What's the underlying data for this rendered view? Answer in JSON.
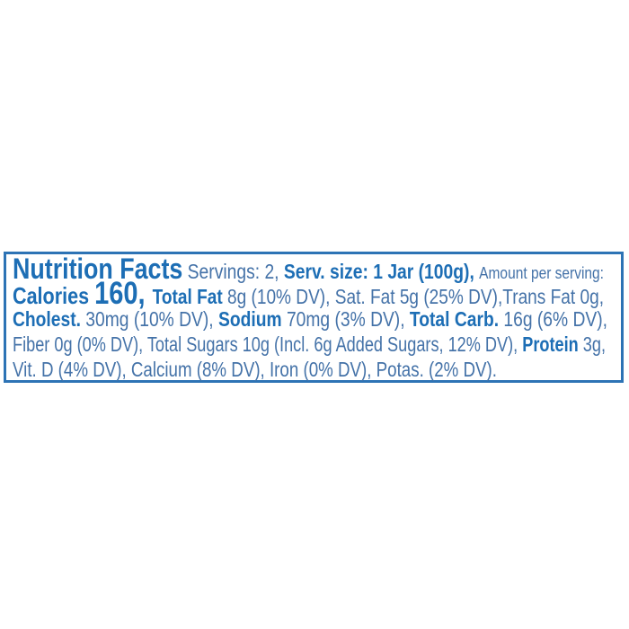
{
  "label": {
    "colors": {
      "bold_text": "#1d6eb5",
      "regular_text": "#4472a8",
      "border": "#2d73b5"
    },
    "title": "Nutrition Facts",
    "servings": "2",
    "serving_size": "1 Jar (100g)",
    "calories": "160",
    "lines": [
      {
        "segments": [
          {
            "text": "Nutrition Facts",
            "style": "title",
            "name": "nutrition-facts-title"
          },
          {
            "text": " Servings: 2, ",
            "style": "regular",
            "name": "servings-value"
          },
          {
            "text": "Serv. size: 1 Jar (100g), ",
            "style": "bold",
            "name": "serving-size-value"
          },
          {
            "text": "Amount per serving:",
            "style": "small",
            "name": "amount-per-serving-label"
          }
        ]
      },
      {
        "segments": [
          {
            "text": "Calories ",
            "style": "calword",
            "name": "calories-label"
          },
          {
            "text": "160, ",
            "style": "calnum",
            "name": "calories-value"
          },
          {
            "text": "Total Fat ",
            "style": "bold",
            "name": "total-fat-label"
          },
          {
            "text": "8g (10% DV), Sat. Fat 5g (25% DV),Trans Fat 0g,",
            "style": "regular",
            "name": "fat-values"
          }
        ]
      },
      {
        "segments": [
          {
            "text": "Cholest. ",
            "style": "bold",
            "name": "cholesterol-label"
          },
          {
            "text": "30mg (10% DV), ",
            "style": "regular",
            "name": "cholesterol-value"
          },
          {
            "text": "Sodium ",
            "style": "bold",
            "name": "sodium-label"
          },
          {
            "text": "70mg (3% DV), ",
            "style": "regular",
            "name": "sodium-value"
          },
          {
            "text": "Total Carb. ",
            "style": "bold",
            "name": "total-carb-label"
          },
          {
            "text": "16g (6% DV),",
            "style": "regular",
            "name": "total-carb-value"
          }
        ]
      },
      {
        "segments": [
          {
            "text": "Fiber 0g (0% DV), Total Sugars 10g (Incl. 6g Added Sugars, 12% DV), ",
            "style": "regular",
            "name": "fiber-sugars-values"
          },
          {
            "text": "Protein ",
            "style": "bold",
            "name": "protein-label"
          },
          {
            "text": "3g,",
            "style": "regular",
            "name": "protein-value"
          }
        ]
      },
      {
        "segments": [
          {
            "text": "Vit. D (4% DV), Calcium (8% DV), Iron (0% DV), Potas. (2% DV).",
            "style": "regular",
            "name": "vitamins-minerals-values"
          }
        ]
      }
    ]
  }
}
